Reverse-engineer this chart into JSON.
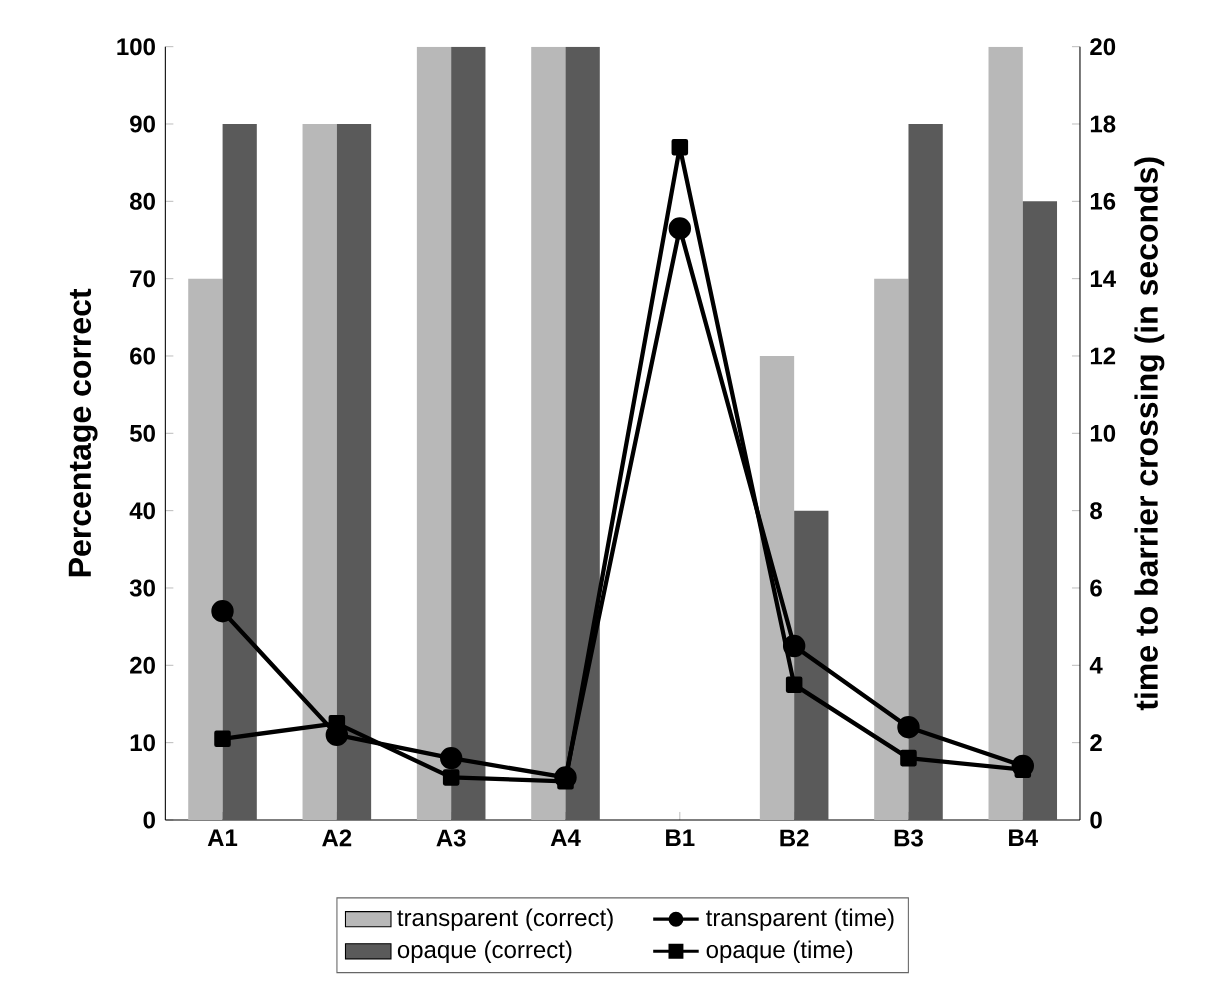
{
  "chart_data": {
    "type": "bar",
    "categories": [
      "A1",
      "A2",
      "A3",
      "A4",
      "B1",
      "B2",
      "B3",
      "B4"
    ],
    "ylabel": "Percentage correct",
    "y2label": "time to barrier crossing (in seconds)",
    "ylim": [
      0,
      100
    ],
    "yticks": [
      0,
      10,
      20,
      30,
      40,
      50,
      60,
      70,
      80,
      90,
      100
    ],
    "y2lim": [
      0,
      20
    ],
    "y2ticks": [
      0,
      2,
      4,
      6,
      8,
      10,
      12,
      14,
      16,
      18,
      20
    ],
    "legend": "bottom",
    "grid": false,
    "series": [
      {
        "name": "transparent (correct)",
        "color": "#b8b8b8",
        "values": [
          70,
          90,
          100,
          100,
          0,
          60,
          70,
          100
        ]
      },
      {
        "name": "transparent (time)",
        "type": "line",
        "axis": "y2",
        "marker": "circle",
        "line_style": "solid",
        "color": "#000000",
        "values": [
          5.4,
          2.2,
          1.6,
          1.1,
          15.3,
          4.5,
          2.4,
          1.4
        ]
      },
      {
        "name": "opaque (correct)",
        "color": "#5a5a5a",
        "values": [
          90,
          90,
          100,
          100,
          0,
          40,
          90,
          80
        ]
      },
      {
        "name": "opaque (time)",
        "type": "line",
        "axis": "y2",
        "marker": "square",
        "line_style": "solid",
        "color": "#000000",
        "values": [
          2.1,
          2.5,
          1.1,
          1.0,
          17.4,
          3.5,
          1.6,
          1.3
        ]
      }
    ]
  }
}
